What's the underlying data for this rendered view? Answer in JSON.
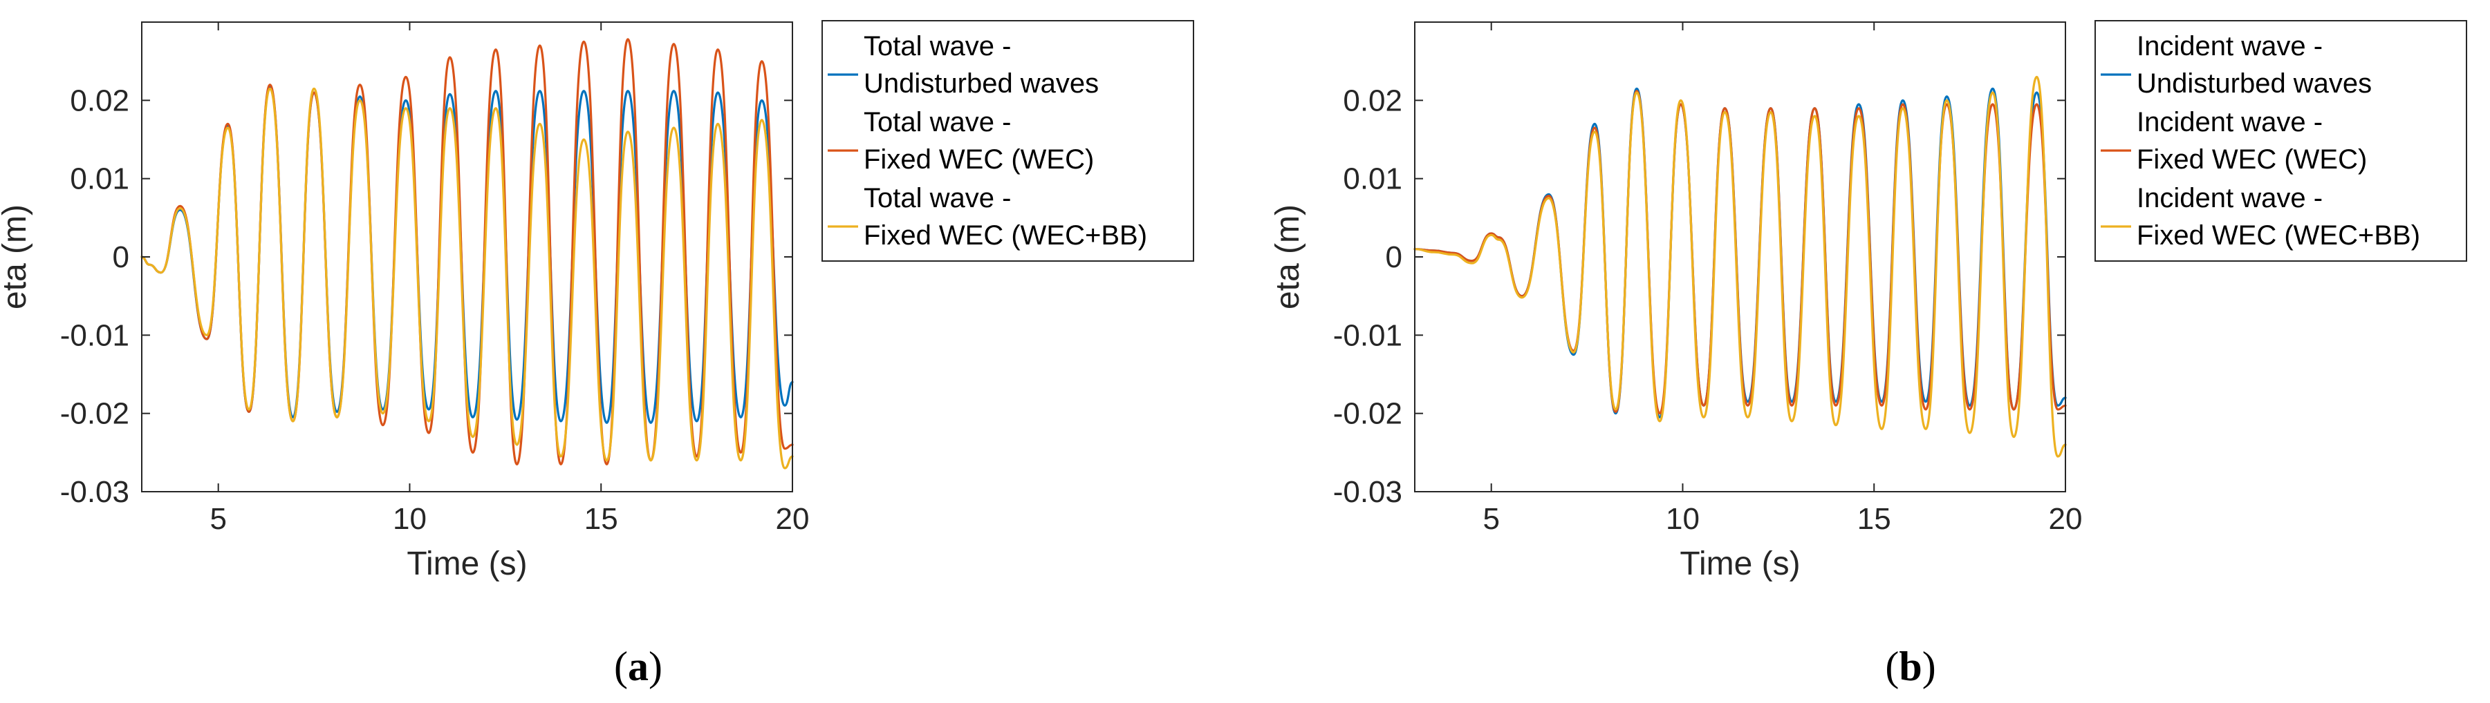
{
  "chart_data": [
    {
      "type": "line",
      "panel_label": "a",
      "xlabel": "Time (s)",
      "ylabel": "eta (m)",
      "xlim": [
        3,
        20
      ],
      "ylim": [
        -0.03,
        0.03
      ],
      "xticks": [
        5,
        10,
        15,
        20
      ],
      "yticks": [
        -0.03,
        -0.02,
        -0.01,
        0,
        0.01,
        0.02
      ],
      "ytick_labels": [
        "-0.03",
        "-0.02",
        "-0.01",
        "0",
        "0.01",
        "0.02"
      ],
      "grid": false,
      "legend_position": "outside-right",
      "series": [
        {
          "name_lines": [
            "Total wave -",
            "Undisturbed waves"
          ],
          "color": "#0072BD",
          "x": [
            3,
            3.2,
            3.5,
            4.0,
            4.7,
            5.25,
            5.8,
            6.35,
            6.95,
            7.5,
            8.1,
            8.7,
            9.3,
            9.9,
            10.5,
            11.05,
            11.65,
            12.25,
            12.8,
            13.4,
            13.95,
            14.55,
            15.15,
            15.7,
            16.3,
            16.9,
            17.5,
            18.05,
            18.65,
            19.2,
            19.8,
            20
          ],
          "y": [
            0,
            -0.001,
            -0.002,
            0.006,
            -0.0105,
            0.0168,
            -0.0198,
            0.0218,
            -0.0205,
            0.021,
            -0.0198,
            0.0205,
            -0.0195,
            0.02,
            -0.0195,
            0.0208,
            -0.0205,
            0.0212,
            -0.0208,
            0.0212,
            -0.021,
            0.0212,
            -0.0212,
            0.0212,
            -0.0212,
            0.0212,
            -0.021,
            0.021,
            -0.0205,
            0.02,
            -0.019,
            -0.016
          ]
        },
        {
          "name_lines": [
            "Total wave -",
            "Fixed WEC (WEC)"
          ],
          "color": "#D95319",
          "x": [
            3,
            3.2,
            3.5,
            4.0,
            4.7,
            5.25,
            5.8,
            6.35,
            6.95,
            7.5,
            8.1,
            8.7,
            9.3,
            9.9,
            10.5,
            11.05,
            11.65,
            12.25,
            12.8,
            13.4,
            13.95,
            14.55,
            15.15,
            15.7,
            16.3,
            16.9,
            17.5,
            18.05,
            18.65,
            19.2,
            19.8,
            20
          ],
          "y": [
            0,
            -0.001,
            -0.002,
            0.0065,
            -0.0105,
            0.017,
            -0.0198,
            0.022,
            -0.021,
            0.021,
            -0.0205,
            0.022,
            -0.0215,
            0.023,
            -0.0225,
            0.0255,
            -0.025,
            0.0265,
            -0.0265,
            0.027,
            -0.0265,
            0.0275,
            -0.0265,
            0.0278,
            -0.026,
            0.0272,
            -0.0255,
            0.0265,
            -0.025,
            0.025,
            -0.0245,
            -0.024
          ]
        },
        {
          "name_lines": [
            "Total wave -",
            "Fixed WEC (WEC+BB)"
          ],
          "color": "#EDB120",
          "x": [
            3,
            3.2,
            3.5,
            4.0,
            4.7,
            5.25,
            5.8,
            6.35,
            6.95,
            7.5,
            8.1,
            8.7,
            9.3,
            9.9,
            10.5,
            11.05,
            11.65,
            12.25,
            12.8,
            13.4,
            13.95,
            14.55,
            15.15,
            15.7,
            16.3,
            16.9,
            17.5,
            18.05,
            18.65,
            19.2,
            19.8,
            20
          ],
          "y": [
            0,
            -0.001,
            -0.002,
            0.0062,
            -0.01,
            0.0165,
            -0.0195,
            0.0215,
            -0.021,
            0.0215,
            -0.0205,
            0.02,
            -0.02,
            0.019,
            -0.021,
            0.019,
            -0.023,
            0.019,
            -0.024,
            0.017,
            -0.0255,
            0.015,
            -0.026,
            0.016,
            -0.026,
            0.0165,
            -0.026,
            0.017,
            -0.026,
            0.0175,
            -0.027,
            -0.0255
          ]
        }
      ]
    },
    {
      "type": "line",
      "panel_label": "b",
      "xlabel": "Time (s)",
      "ylabel": "eta (m)",
      "xlim": [
        3,
        20
      ],
      "ylim": [
        -0.03,
        0.03
      ],
      "xticks": [
        5,
        10,
        15,
        20
      ],
      "yticks": [
        -0.03,
        -0.02,
        -0.01,
        0,
        0.01,
        0.02
      ],
      "ytick_labels": [
        "-0.03",
        "-0.02",
        "-0.01",
        "0",
        "0.01",
        "0.02"
      ],
      "grid": false,
      "legend_position": "outside-right",
      "series": [
        {
          "name_lines": [
            "Incident wave -",
            "Undisturbed waves"
          ],
          "color": "#0072BD",
          "x": [
            3,
            3.5,
            4.0,
            4.5,
            5.0,
            5.2,
            5.8,
            6.5,
            7.15,
            7.7,
            8.25,
            8.8,
            9.4,
            9.95,
            10.55,
            11.1,
            11.7,
            12.3,
            12.85,
            13.45,
            14.0,
            14.6,
            15.2,
            15.75,
            16.35,
            16.9,
            17.5,
            18.1,
            18.65,
            19.25,
            19.8,
            20
          ],
          "y": [
            0.001,
            0.0008,
            0.0005,
            -0.0005,
            0.003,
            0.0025,
            -0.005,
            0.008,
            -0.0125,
            0.017,
            -0.02,
            0.0215,
            -0.0205,
            0.0195,
            -0.019,
            0.019,
            -0.0185,
            0.019,
            -0.0185,
            0.019,
            -0.0185,
            0.0195,
            -0.0185,
            0.02,
            -0.0185,
            0.0205,
            -0.019,
            0.0215,
            -0.0195,
            0.021,
            -0.019,
            -0.018
          ]
        },
        {
          "name_lines": [
            "Incident wave -",
            "Fixed WEC (WEC)"
          ],
          "color": "#D95319",
          "x": [
            3,
            3.5,
            4.0,
            4.5,
            5.0,
            5.2,
            5.8,
            6.5,
            7.15,
            7.7,
            8.25,
            8.8,
            9.4,
            9.95,
            10.55,
            11.1,
            11.7,
            12.3,
            12.85,
            13.45,
            14.0,
            14.6,
            15.2,
            15.75,
            16.35,
            16.9,
            17.5,
            18.1,
            18.65,
            19.25,
            19.8,
            20
          ],
          "y": [
            0.001,
            0.0008,
            0.0005,
            -0.0005,
            0.003,
            0.0025,
            -0.005,
            0.0078,
            -0.012,
            0.0165,
            -0.0198,
            0.0212,
            -0.02,
            0.0195,
            -0.019,
            0.019,
            -0.019,
            0.019,
            -0.019,
            0.019,
            -0.019,
            0.019,
            -0.019,
            0.0195,
            -0.0195,
            0.0195,
            -0.0195,
            0.0195,
            -0.0195,
            0.0195,
            -0.0195,
            -0.019
          ]
        },
        {
          "name_lines": [
            "Incident wave -",
            "Fixed WEC (WEC+BB)"
          ],
          "color": "#EDB120",
          "x": [
            3,
            3.5,
            4.0,
            4.5,
            5.0,
            5.2,
            5.8,
            6.5,
            7.15,
            7.7,
            8.25,
            8.8,
            9.4,
            9.95,
            10.55,
            11.1,
            11.7,
            12.3,
            12.85,
            13.45,
            14.0,
            14.6,
            15.2,
            15.75,
            16.35,
            16.9,
            17.5,
            18.1,
            18.65,
            19.25,
            19.8,
            20
          ],
          "y": [
            0.001,
            0.0006,
            0.0003,
            -0.0008,
            0.0028,
            0.0022,
            -0.0052,
            0.0075,
            -0.0122,
            0.016,
            -0.0195,
            0.021,
            -0.021,
            0.02,
            -0.0205,
            0.0185,
            -0.0205,
            0.0185,
            -0.021,
            0.018,
            -0.0215,
            0.018,
            -0.022,
            0.019,
            -0.022,
            0.02,
            -0.0225,
            0.021,
            -0.023,
            0.023,
            -0.0255,
            -0.024
          ]
        }
      ]
    }
  ]
}
